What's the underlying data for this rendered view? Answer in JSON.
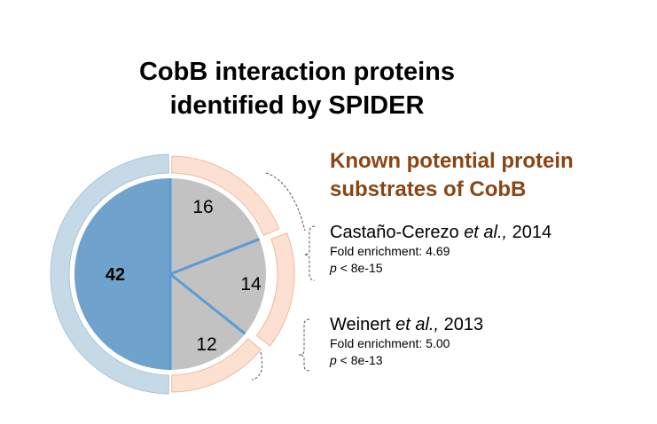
{
  "title": {
    "line1": "CobB interaction proteins",
    "line2": "identified by SPIDER"
  },
  "panel": {
    "heading_line1": "Known potential protein",
    "heading_line2": "substrates of CobB"
  },
  "references": [
    {
      "author": "Castaño-Cerezo ",
      "etal": "et al.,",
      "year": " 2014",
      "fold_label": "Fold enrichment:",
      "fold_value": "4.69",
      "p_symbol": "p",
      "p_text": " < 8e-15"
    },
    {
      "author": "Weinert ",
      "etal": "et al.,",
      "year": " 2013",
      "fold_label": "Fold enrichment:",
      "fold_value": "5.00",
      "p_symbol": "p",
      "p_text": " < 8e-13"
    }
  ],
  "chart_data": {
    "type": "pie",
    "segments": [
      {
        "label": "42",
        "value": 42,
        "color": "#6FA3CD"
      },
      {
        "label": "16",
        "value": 16,
        "color": "#C2C2C2"
      },
      {
        "label": "14",
        "value": 14,
        "color": "#C2C2C2"
      },
      {
        "label": "12",
        "value": 12,
        "color": "#C2C2C2"
      }
    ],
    "colors": {
      "outer_ring_left": "#C5DAE6",
      "outer_ring_right": "#FCE1D2",
      "divider": "#5B9BD5"
    }
  }
}
